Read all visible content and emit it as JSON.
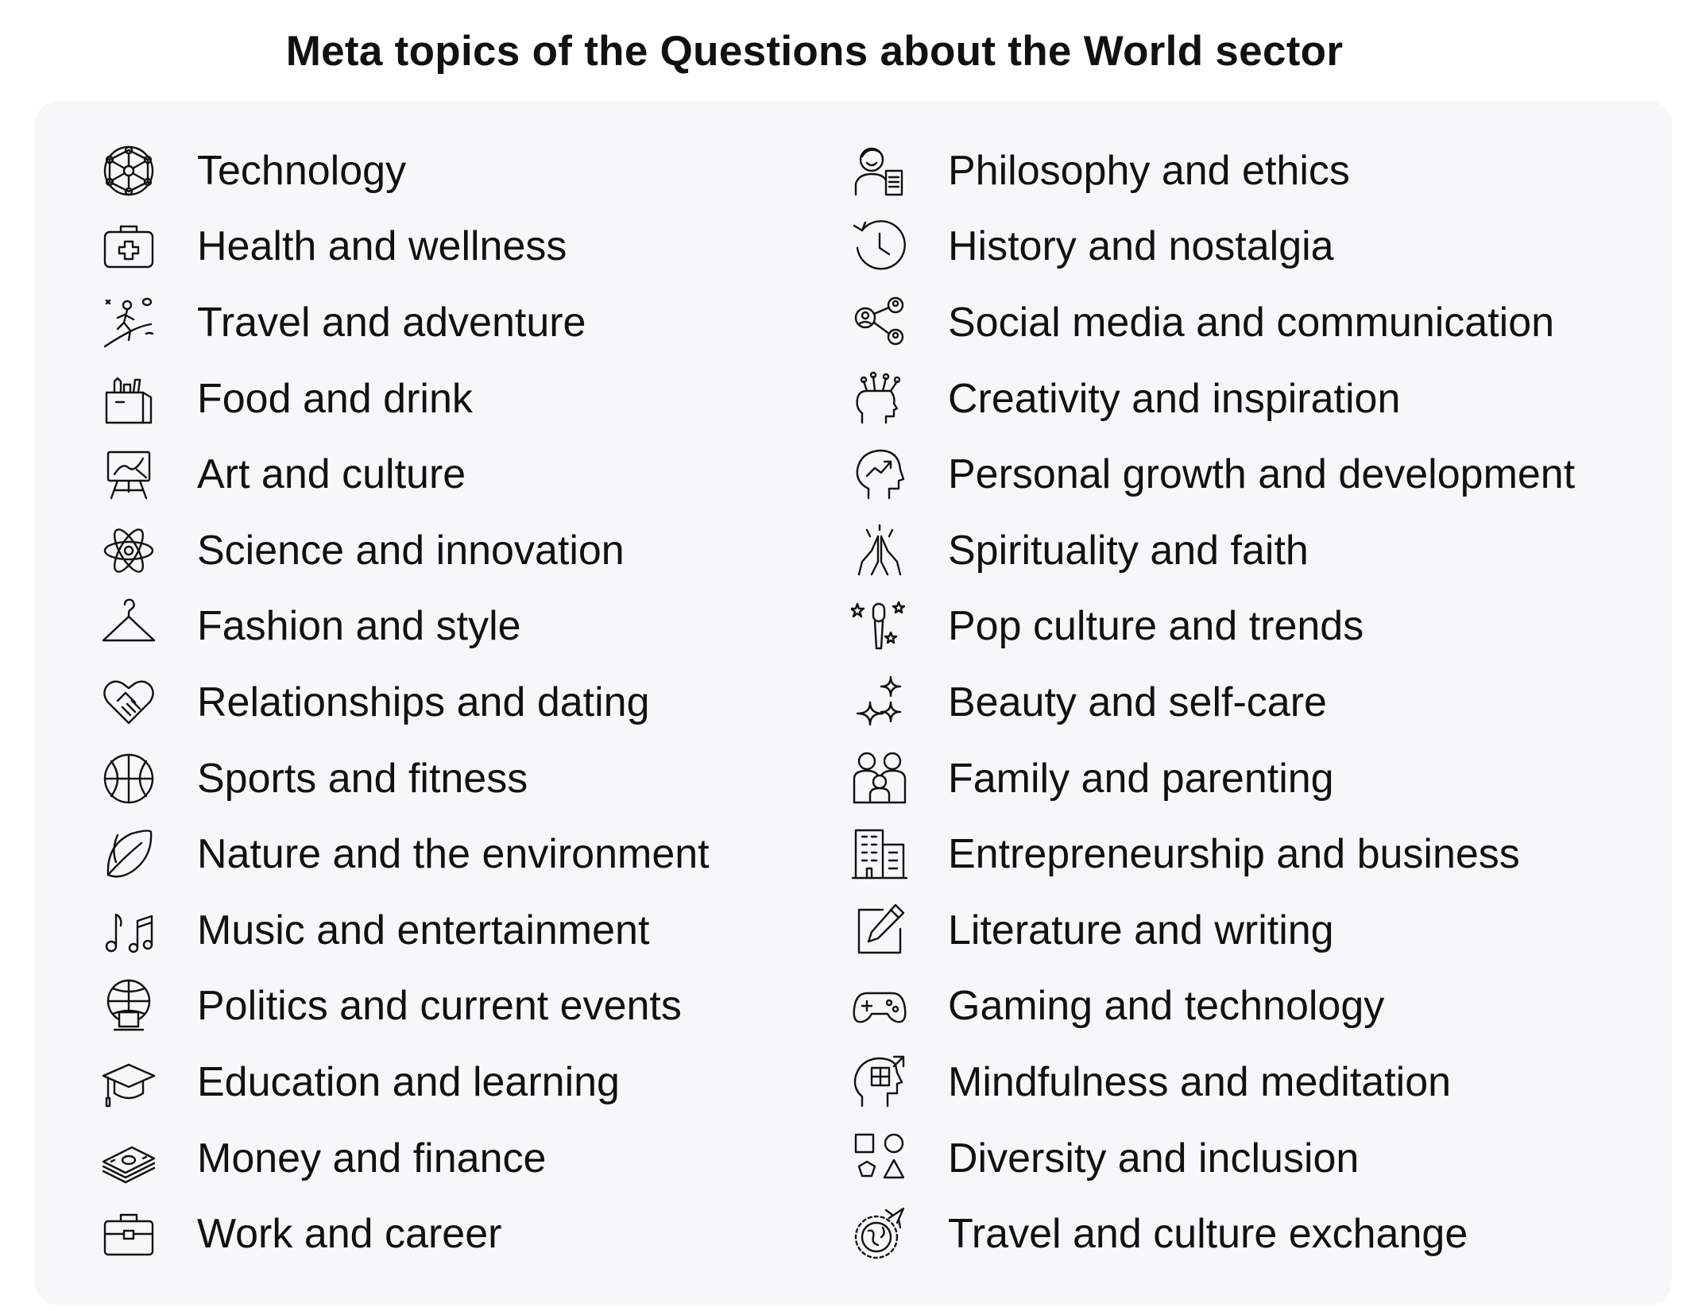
{
  "title": "Meta topics of the Questions about the World sector",
  "left_topics": [
    {
      "label": "Technology",
      "icon": "neural-network-icon"
    },
    {
      "label": "Health and wellness",
      "icon": "first-aid-kit-icon"
    },
    {
      "label": "Travel and adventure",
      "icon": "hiker-icon"
    },
    {
      "label": "Food and drink",
      "icon": "grocery-bag-icon"
    },
    {
      "label": "Art and culture",
      "icon": "easel-icon"
    },
    {
      "label": "Science and innovation",
      "icon": "atom-icon"
    },
    {
      "label": "Fashion and style",
      "icon": "hanger-icon"
    },
    {
      "label": "Relationships and dating",
      "icon": "heart-handshake-icon"
    },
    {
      "label": "Sports and fitness",
      "icon": "basketball-icon"
    },
    {
      "label": "Nature and the environment",
      "icon": "leaf-icon"
    },
    {
      "label": "Music and entertainment",
      "icon": "music-notes-icon"
    },
    {
      "label": "Politics and current events",
      "icon": "globe-podium-icon"
    },
    {
      "label": "Education and learning",
      "icon": "graduation-cap-icon"
    },
    {
      "label": "Money and finance",
      "icon": "money-stack-icon"
    },
    {
      "label": "Work and career",
      "icon": "briefcase-icon"
    }
  ],
  "right_topics": [
    {
      "label": "Philosophy and ethics",
      "icon": "philosopher-icon"
    },
    {
      "label": "History and nostalgia",
      "icon": "history-clock-icon"
    },
    {
      "label": "Social media and communication",
      "icon": "social-network-icon"
    },
    {
      "label": "Creativity and inspiration",
      "icon": "creative-head-icon"
    },
    {
      "label": "Personal growth and development",
      "icon": "growth-head-icon"
    },
    {
      "label": "Spirituality and faith",
      "icon": "praying-hands-icon"
    },
    {
      "label": "Pop culture and trends",
      "icon": "microphone-stars-icon"
    },
    {
      "label": "Beauty and self-care",
      "icon": "sparkles-icon"
    },
    {
      "label": "Family and parenting",
      "icon": "family-icon"
    },
    {
      "label": "Entrepreneurship and business",
      "icon": "office-building-icon"
    },
    {
      "label": "Literature and writing",
      "icon": "pencil-square-icon"
    },
    {
      "label": "Gaming and technology",
      "icon": "gamepad-icon"
    },
    {
      "label": "Mindfulness and meditation",
      "icon": "mind-puzzle-icon"
    },
    {
      "label": "Diversity and inclusion",
      "icon": "shapes-icon"
    },
    {
      "label": "Travel and culture exchange",
      "icon": "globe-plane-icon"
    }
  ]
}
